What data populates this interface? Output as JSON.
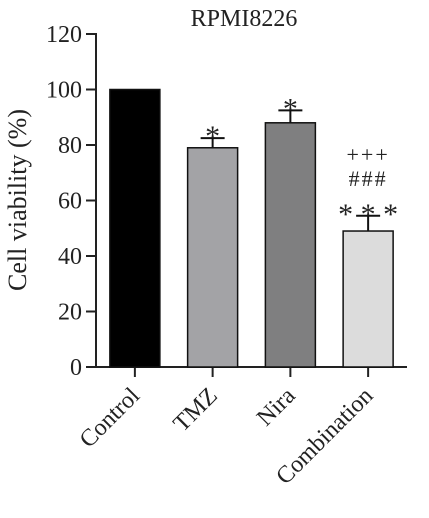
{
  "chart_data": {
    "type": "bar",
    "title": "RPMI8226",
    "ylabel": "Cell viability (%)",
    "xlabel": "",
    "ylim": [
      0,
      120
    ],
    "yticks": [
      0,
      20,
      40,
      60,
      80,
      100,
      120
    ],
    "categories": [
      "Control",
      "TMZ",
      "Nira",
      "Combination"
    ],
    "values": [
      100,
      79,
      88,
      49
    ],
    "errors": [
      0,
      3.5,
      4.5,
      5.5
    ],
    "bar_colors": [
      "#000000",
      "#a3a3a6",
      "#7f7f80",
      "#dcdcdc"
    ],
    "annotations": [
      [],
      [
        "*"
      ],
      [
        "*"
      ],
      [
        "* * *",
        "###",
        "+++"
      ]
    ]
  }
}
